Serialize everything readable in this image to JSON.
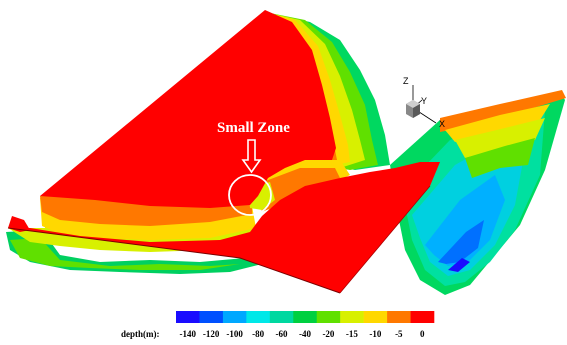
{
  "annotation": "Small Zone",
  "axes": {
    "x": "X",
    "y": "Y",
    "z": "Z"
  },
  "legend": {
    "label": "depth(m):",
    "ticks": [
      "-140",
      "-120",
      "-100",
      "-80",
      "-60",
      "-40",
      "-20",
      "-15",
      "-10",
      "-5",
      "0"
    ],
    "colors": [
      "#1a0cff",
      "#0050ff",
      "#00a8ff",
      "#00e8e8",
      "#00d8a0",
      "#00d040",
      "#60e000",
      "#d8f000",
      "#ffd800",
      "#ff7800",
      "#ff0000"
    ]
  },
  "colors": {
    "surface": "#ff0000",
    "highlight_ring": "#ffffff"
  }
}
